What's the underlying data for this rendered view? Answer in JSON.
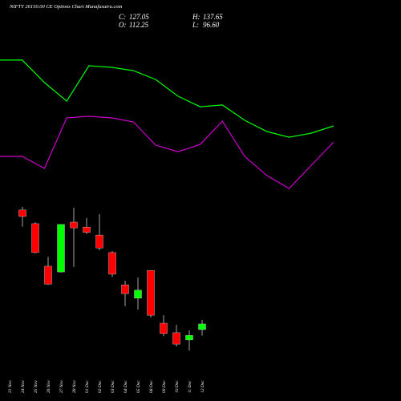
{
  "chart_data": {
    "type": "candlestick",
    "title": "NIFTY 26150.00 CE Options Chart Munafasutra.com",
    "header": [
      {
        "label": "C:",
        "value": "127.05"
      },
      {
        "label": "H:",
        "value": "137.65"
      },
      {
        "label": "O:",
        "value": "112.25"
      },
      {
        "label": "L:",
        "value": "96.60"
      }
    ],
    "categories": [
      "21 Nov",
      "24 Nov",
      "25 Nov",
      "26 Nov",
      "27 Nov",
      "28 Nov",
      "01 Dec",
      "02 Dec",
      "03 Dec",
      "04 Dec",
      "05 Dec",
      "08 Dec",
      "09 Dec",
      "10 Dec",
      "11 Dec",
      "12 Dec"
    ],
    "open": [
      null,
      427,
      391,
      279,
      264,
      395,
      382,
      361,
      315,
      230,
      195,
      268,
      129,
      104,
      85,
      112.25
    ],
    "high": [
      null,
      435,
      395,
      304,
      389,
      433,
      406,
      416,
      319,
      241,
      249,
      268,
      150,
      125,
      110,
      137.65
    ],
    "low": [
      null,
      383,
      313,
      230,
      262,
      277,
      364,
      321,
      251,
      174,
      165,
      144,
      95,
      68,
      57,
      96.6
    ],
    "close": [
      null,
      410,
      315,
      232,
      389,
      380,
      368,
      327,
      258,
      207,
      216,
      150,
      102,
      74,
      97,
      127.05
    ],
    "up_color": "#00ff00",
    "down_color": "#ff0000",
    "ylim": [
      51,
      452
    ],
    "lines": {
      "ylim": [
        0,
        100
      ],
      "series": [
        {
          "color": "#00ff00",
          "values": [
            91.7,
            91.7,
            76.1,
            63.3,
            87.8,
            86.7,
            84.4,
            78.3,
            66.7,
            59.4,
            60.6,
            50,
            42.2,
            38.3,
            41.1,
            46.1
          ]
        },
        {
          "color": "#cc00cc",
          "values": [
            25,
            25,
            16.7,
            51.7,
            52.8,
            51.7,
            48.9,
            32.8,
            28.3,
            33.3,
            49.4,
            25,
            11.7,
            2.8,
            18.9,
            35
          ]
        }
      ]
    }
  }
}
